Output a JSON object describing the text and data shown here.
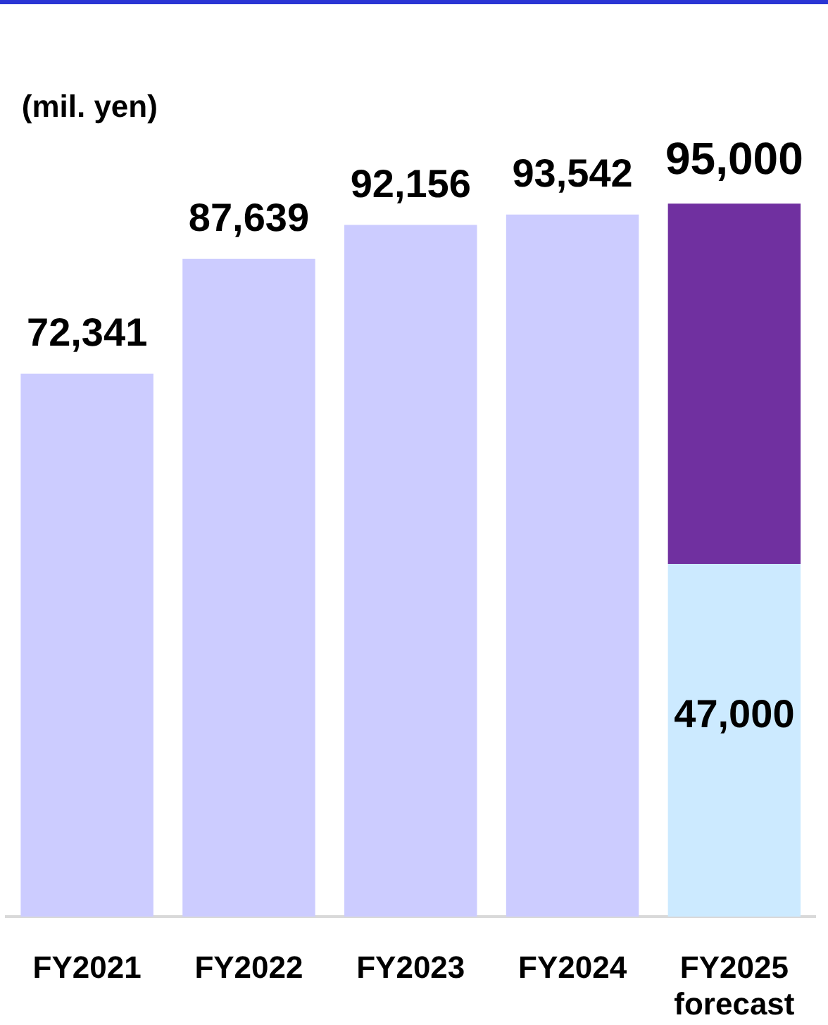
{
  "chart_data": {
    "type": "bar",
    "ylabel": "(mil. yen)",
    "categories": [
      "FY2021",
      "FY2022",
      "FY2023",
      "FY2024",
      "FY2025\nforecast"
    ],
    "stacked": true,
    "series": [
      {
        "values": [
          72341,
          87639,
          92156,
          93542,
          47000
        ],
        "colors": [
          "#ccccff",
          "#ccccff",
          "#ccccff",
          "#ccccff",
          "#cceaff"
        ],
        "value_labels": [
          "72,341",
          "87,639",
          "92,156",
          "93,542",
          "47,000"
        ]
      },
      {
        "values": [
          null,
          null,
          null,
          null,
          48000
        ],
        "color": "#7030a0"
      }
    ],
    "totals": [
      null,
      null,
      null,
      null,
      "95,000"
    ],
    "tick_labels": "x"
  }
}
